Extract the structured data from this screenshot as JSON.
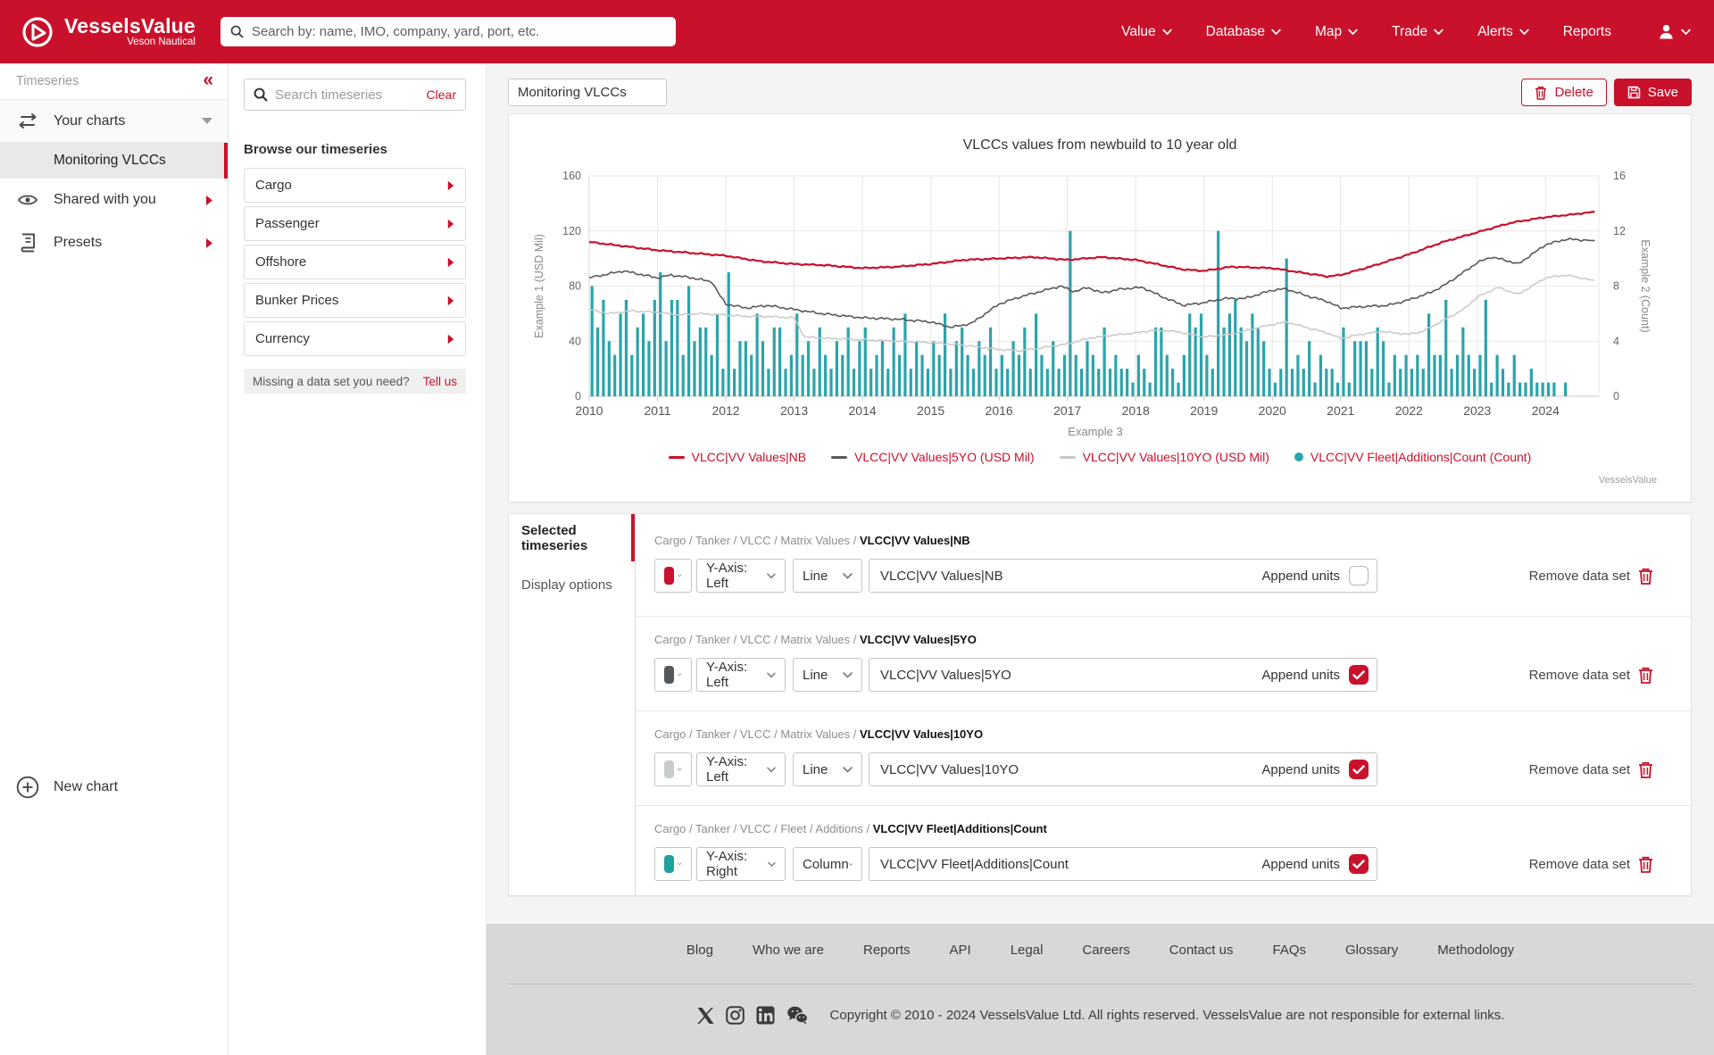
{
  "nav": {
    "brand": {
      "name": "VesselsValue",
      "sub": "Veson Nautical"
    },
    "search_placeholder": "Search by: name, IMO, company, yard, port, etc.",
    "items": [
      {
        "label": "Value",
        "caret": true
      },
      {
        "label": "Database",
        "caret": true
      },
      {
        "label": "Map",
        "caret": true
      },
      {
        "label": "Trade",
        "caret": true
      },
      {
        "label": "Alerts",
        "caret": true
      },
      {
        "label": "Reports",
        "caret": false
      }
    ]
  },
  "sidebar": {
    "title": "Timeseries",
    "your_charts": "Your charts",
    "active_chart": "Monitoring VLCCs",
    "shared": "Shared with you",
    "presets": "Presets",
    "new_chart": "New chart"
  },
  "browse": {
    "search_placeholder": "Search timeseries",
    "clear": "Clear",
    "heading": "Browse our timeseries",
    "categories": [
      "Cargo",
      "Passenger",
      "Offshore",
      "Bunker Prices",
      "Currency"
    ],
    "missing": "Missing a data set you need?",
    "tell_us": "Tell us"
  },
  "toolbar": {
    "chart_name": "Monitoring VLCCs",
    "delete": "Delete",
    "save": "Save"
  },
  "chart_data": {
    "type": "mixed",
    "title": "VLCCs values from newbuild to 10 year old",
    "x_axis": {
      "label": "Example 3",
      "ticks": [
        2010,
        2011,
        2012,
        2013,
        2014,
        2015,
        2016,
        2017,
        2018,
        2019,
        2020,
        2021,
        2022,
        2023,
        2024
      ],
      "range": [
        2010,
        2024.78
      ]
    },
    "y_left": {
      "label": "Example 1 (USD Mil)",
      "ticks": [
        0,
        40,
        80,
        120,
        160
      ],
      "range": [
        0,
        160
      ]
    },
    "y_right": {
      "label": "Example 2 (Count)",
      "ticks": [
        0,
        4,
        8,
        12,
        16
      ],
      "range": [
        0,
        16
      ]
    },
    "series": [
      {
        "name": "VLCC|VV Values|NB",
        "type": "line",
        "axis": "left",
        "color": "#c9112b",
        "width": 2.2,
        "noise": 0.7,
        "points": [
          [
            2010,
            112
          ],
          [
            2010.5,
            109
          ],
          [
            2011,
            106
          ],
          [
            2011.5,
            104
          ],
          [
            2012,
            102
          ],
          [
            2012.5,
            98
          ],
          [
            2013,
            96
          ],
          [
            2013.5,
            95
          ],
          [
            2014,
            93
          ],
          [
            2014.5,
            94
          ],
          [
            2015,
            96
          ],
          [
            2015.5,
            99
          ],
          [
            2016,
            100
          ],
          [
            2016.5,
            101
          ],
          [
            2017,
            99
          ],
          [
            2017.5,
            101
          ],
          [
            2018,
            99
          ],
          [
            2018.4,
            95
          ],
          [
            2018.7,
            92
          ],
          [
            2019,
            91
          ],
          [
            2019.4,
            94
          ],
          [
            2020,
            93
          ],
          [
            2020.4,
            90
          ],
          [
            2020.8,
            87
          ],
          [
            2021,
            88
          ],
          [
            2021.5,
            95
          ],
          [
            2022,
            103
          ],
          [
            2022.5,
            112
          ],
          [
            2023,
            119
          ],
          [
            2023.5,
            126
          ],
          [
            2024,
            130
          ],
          [
            2024.4,
            132
          ],
          [
            2024.72,
            134
          ]
        ]
      },
      {
        "name": "VLCC|VV Values|5YO (USD Mil)",
        "type": "line",
        "axis": "left",
        "color": "#595959",
        "width": 1.6,
        "noise": 1.1,
        "points": [
          [
            2010,
            86
          ],
          [
            2010.3,
            89
          ],
          [
            2010.5,
            91
          ],
          [
            2010.8,
            88
          ],
          [
            2011,
            86
          ],
          [
            2011.2,
            88
          ],
          [
            2011.5,
            86
          ],
          [
            2011.8,
            83
          ],
          [
            2011.9,
            74
          ],
          [
            2012,
            67
          ],
          [
            2012.3,
            64
          ],
          [
            2012.6,
            66
          ],
          [
            2013,
            63
          ],
          [
            2013.4,
            60
          ],
          [
            2013.8,
            58
          ],
          [
            2014,
            57
          ],
          [
            2014.5,
            56
          ],
          [
            2015,
            54
          ],
          [
            2015.3,
            50
          ],
          [
            2015.6,
            53
          ],
          [
            2015.8,
            60
          ],
          [
            2016,
            67
          ],
          [
            2016.3,
            72
          ],
          [
            2016.6,
            76
          ],
          [
            2016.9,
            80
          ],
          [
            2017.1,
            76
          ],
          [
            2017.3,
            79
          ],
          [
            2017.5,
            75
          ],
          [
            2017.8,
            78
          ],
          [
            2018.1,
            79
          ],
          [
            2018.4,
            72
          ],
          [
            2018.7,
            66
          ],
          [
            2019,
            68
          ],
          [
            2019.3,
            71
          ],
          [
            2019.6,
            71
          ],
          [
            2020,
            77
          ],
          [
            2020.2,
            78
          ],
          [
            2020.5,
            73
          ],
          [
            2020.8,
            69
          ],
          [
            2021,
            64
          ],
          [
            2021.3,
            65
          ],
          [
            2021.7,
            66
          ],
          [
            2022,
            70
          ],
          [
            2022.3,
            75
          ],
          [
            2022.5,
            80
          ],
          [
            2022.8,
            90
          ],
          [
            2023,
            97
          ],
          [
            2023.2,
            101
          ],
          [
            2023.4,
            99
          ],
          [
            2023.6,
            96
          ],
          [
            2023.8,
            103
          ],
          [
            2024,
            110
          ],
          [
            2024.3,
            114
          ],
          [
            2024.72,
            113
          ]
        ]
      },
      {
        "name": "VLCC|VV Values|10YO (USD Mil)",
        "type": "line",
        "axis": "left",
        "color": "#c8c8c8",
        "width": 1.5,
        "noise": 0.9,
        "points": [
          [
            2010,
            63
          ],
          [
            2010.3,
            60
          ],
          [
            2010.6,
            62
          ],
          [
            2011,
            61
          ],
          [
            2011.3,
            59
          ],
          [
            2011.6,
            60
          ],
          [
            2012,
            59
          ],
          [
            2012.3,
            58
          ],
          [
            2012.6,
            58
          ],
          [
            2013,
            57
          ],
          [
            2013.15,
            43
          ],
          [
            2013.5,
            42
          ],
          [
            2014,
            41
          ],
          [
            2014.5,
            40
          ],
          [
            2015,
            39
          ],
          [
            2015.5,
            37
          ],
          [
            2016,
            34
          ],
          [
            2016.3,
            33
          ],
          [
            2016.6,
            35
          ],
          [
            2017,
            38
          ],
          [
            2017.3,
            42
          ],
          [
            2017.6,
            44
          ],
          [
            2018,
            46
          ],
          [
            2018.3,
            48
          ],
          [
            2018.6,
            47
          ],
          [
            2019,
            43
          ],
          [
            2019.4,
            45
          ],
          [
            2019.8,
            50
          ],
          [
            2020,
            52
          ],
          [
            2020.2,
            54
          ],
          [
            2020.5,
            50
          ],
          [
            2020.8,
            46
          ],
          [
            2021,
            42
          ],
          [
            2021.3,
            45
          ],
          [
            2021.6,
            47
          ],
          [
            2022,
            45
          ],
          [
            2022.2,
            47
          ],
          [
            2022.5,
            55
          ],
          [
            2022.8,
            63
          ],
          [
            2023,
            72
          ],
          [
            2023.3,
            79
          ],
          [
            2023.6,
            74
          ],
          [
            2023.8,
            80
          ],
          [
            2024,
            86
          ],
          [
            2024.3,
            88
          ],
          [
            2024.72,
            84
          ]
        ]
      },
      {
        "name": "VLCC|VV Fleet|Additions|Count (Count)",
        "type": "column",
        "axis": "right",
        "color": "#2aa4aa",
        "start_year": 2010,
        "interval_months": 1,
        "values": [
          8,
          5,
          7,
          4,
          3,
          6,
          7,
          3,
          5,
          6,
          4,
          7,
          9,
          4,
          7,
          7,
          3,
          8,
          4,
          5,
          5,
          3,
          6,
          2,
          9,
          2,
          4,
          4,
          3,
          6,
          4,
          2,
          5,
          5,
          2,
          3,
          6,
          3,
          4,
          2,
          5,
          3,
          2,
          4,
          3,
          5,
          2,
          4,
          5,
          2,
          3,
          4,
          2,
          5,
          3,
          6,
          2,
          4,
          3,
          2,
          4,
          3,
          6,
          2,
          4,
          5,
          3,
          2,
          4,
          3,
          5,
          2,
          3,
          2,
          4,
          3,
          5,
          2,
          6,
          3,
          2,
          4,
          2,
          3,
          12,
          3,
          2,
          4,
          3,
          2,
          5,
          2,
          3,
          2,
          2,
          1,
          3,
          2,
          1,
          5,
          5,
          3,
          2,
          1,
          3,
          6,
          5,
          6,
          3,
          2,
          12,
          5,
          6,
          7,
          5,
          4,
          6,
          5,
          4,
          2,
          1,
          2,
          10,
          2,
          3,
          2,
          4,
          1,
          3,
          2,
          2,
          1,
          5,
          1,
          4,
          4,
          4,
          2,
          5,
          4,
          1,
          3,
          2,
          3,
          2,
          3,
          2,
          6,
          3,
          3,
          7,
          2,
          3,
          5,
          3,
          2,
          3,
          7,
          1,
          3,
          2,
          1,
          3,
          1,
          1,
          2,
          1,
          1,
          1,
          1,
          0,
          1,
          0,
          0
        ]
      }
    ],
    "legend_position": "bottom-center",
    "grid": true,
    "watermark": "VesselsValue"
  },
  "panel": {
    "tabs": [
      "Selected timeseries",
      "Display options"
    ],
    "active_tab": 0,
    "append_label": "Append units",
    "remove_label": "Remove data set",
    "rows": [
      {
        "path": [
          "Cargo",
          "Tanker",
          "VLCC",
          "Matrix Values"
        ],
        "name": "VLCC|VV Values|NB",
        "color": "#c9112b",
        "y_axis": "Y-Axis: Left",
        "series_type": "Line",
        "value": "VLCC|VV Values|NB",
        "append_checked": false
      },
      {
        "path": [
          "Cargo",
          "Tanker",
          "VLCC",
          "Matrix Values"
        ],
        "name": "VLCC|VV Values|5YO",
        "color": "#55595c",
        "y_axis": "Y-Axis: Left",
        "series_type": "Line",
        "value": "VLCC|VV Values|5YO",
        "append_checked": true
      },
      {
        "path": [
          "Cargo",
          "Tanker",
          "VLCC",
          "Matrix Values"
        ],
        "name": "VLCC|VV Values|10YO",
        "color": "#c9cccc",
        "y_axis": "Y-Axis: Left",
        "series_type": "Line",
        "value": "VLCC|VV Values|10YO",
        "append_checked": true
      },
      {
        "path": [
          "Cargo",
          "Tanker",
          "VLCC",
          "Fleet",
          "Additions"
        ],
        "name": "VLCC|VV Fleet|Additions|Count",
        "color": "#21a1a1",
        "y_axis": "Y-Axis: Right",
        "series_type": "Column",
        "value": "VLCC|VV Fleet|Additions|Count",
        "append_checked": true
      }
    ]
  },
  "footer": {
    "links": [
      "Blog",
      "Who we are",
      "Reports",
      "API",
      "Legal",
      "Careers",
      "Contact us",
      "FAQs",
      "Glossary",
      "Methodology"
    ],
    "social": [
      "x",
      "instagram",
      "linkedin",
      "wechat"
    ],
    "copyright": "Copyright © 2010 - 2024 VesselsValue Ltd. All rights reserved. VesselsValue are not responsible for external links."
  }
}
